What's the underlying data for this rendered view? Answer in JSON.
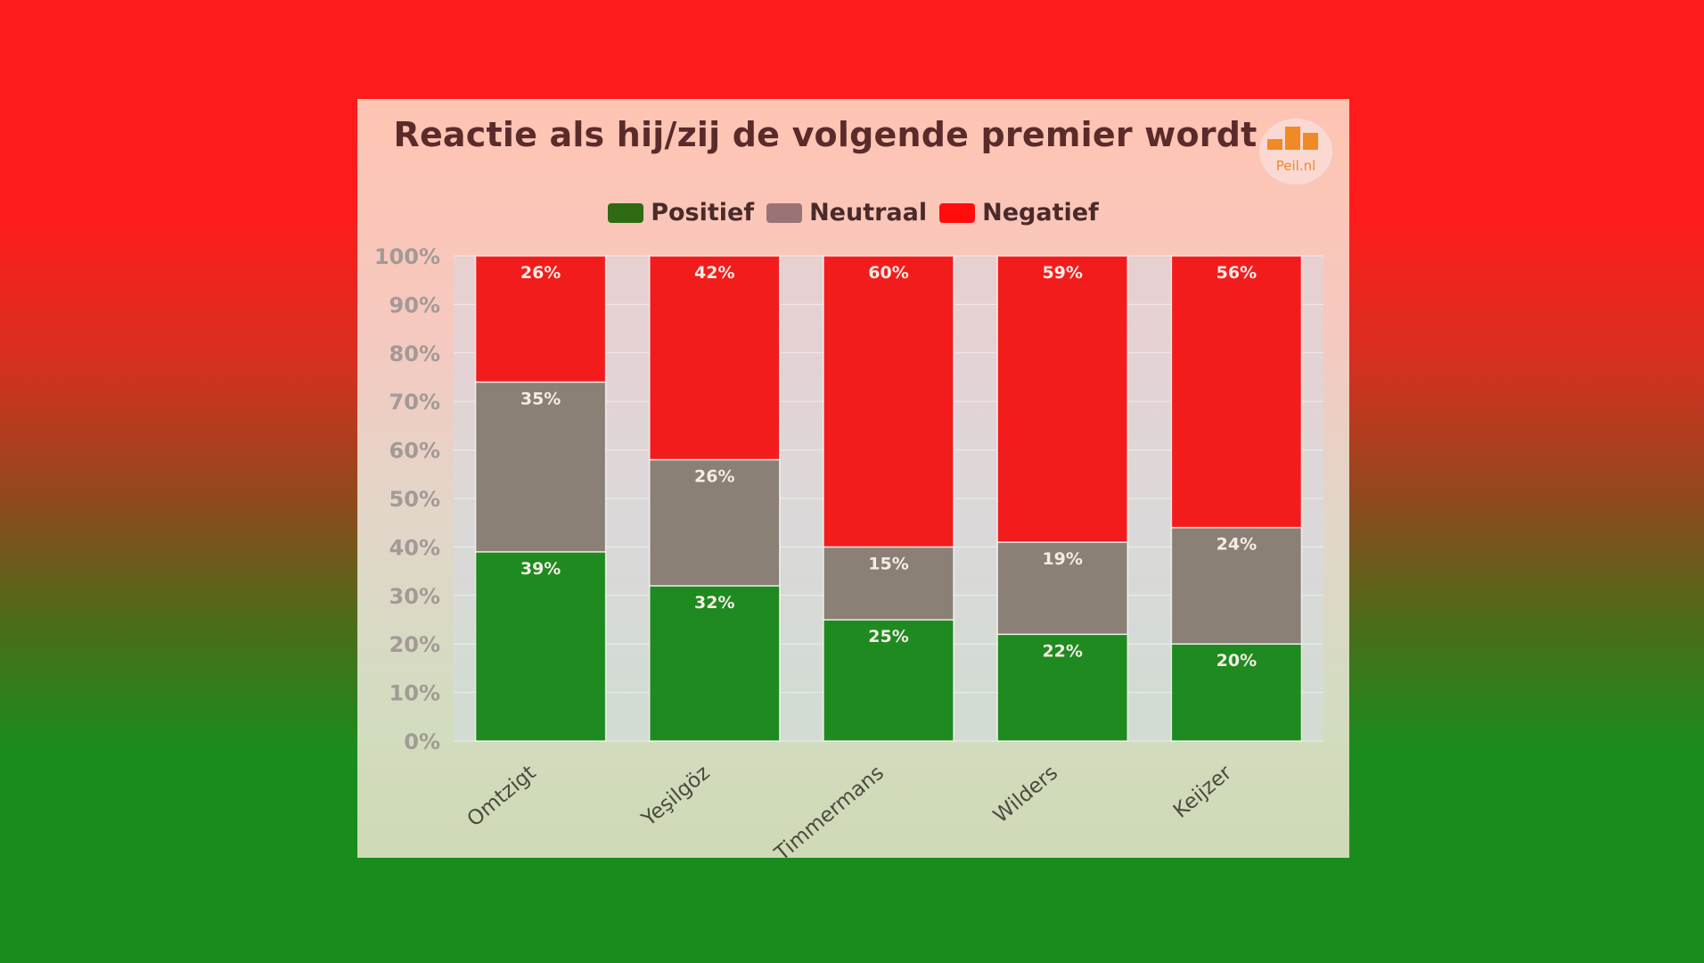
{
  "chart_data": {
    "type": "bar",
    "stacked": true,
    "title": "Reactie als hij/zij de volgende premier wordt",
    "categories": [
      "Omtzigt",
      "Yeşilgöz",
      "Timmermans",
      "Wilders",
      "Keijzer"
    ],
    "series": [
      {
        "name": "Positief",
        "color": "#1f8a1f",
        "legend_color": "#2f6b12",
        "values": [
          39,
          32,
          25,
          22,
          20
        ],
        "labels": [
          "39%",
          "32%",
          "25%",
          "22%",
          "20%"
        ]
      },
      {
        "name": "Neutraal",
        "color": "#8a8076",
        "legend_color": "#9a7474",
        "values": [
          35,
          26,
          15,
          19,
          24
        ],
        "labels": [
          "35%",
          "26%",
          "15%",
          "19%",
          "24%"
        ]
      },
      {
        "name": "Negatief",
        "color": "#f31c1c",
        "legend_color": "#ff0d0d",
        "values": [
          26,
          42,
          60,
          59,
          56
        ],
        "labels": [
          "26%",
          "42%",
          "60%",
          "59%",
          "56%"
        ]
      }
    ],
    "yticks": [
      "0%",
      "10%",
      "20%",
      "30%",
      "40%",
      "50%",
      "60%",
      "70%",
      "80%",
      "90%",
      "100%"
    ],
    "ylim": [
      0,
      100
    ],
    "legend_position": "top-center",
    "grid": true
  },
  "logo": {
    "text": "Peil.nl",
    "color": "#f08a24"
  }
}
